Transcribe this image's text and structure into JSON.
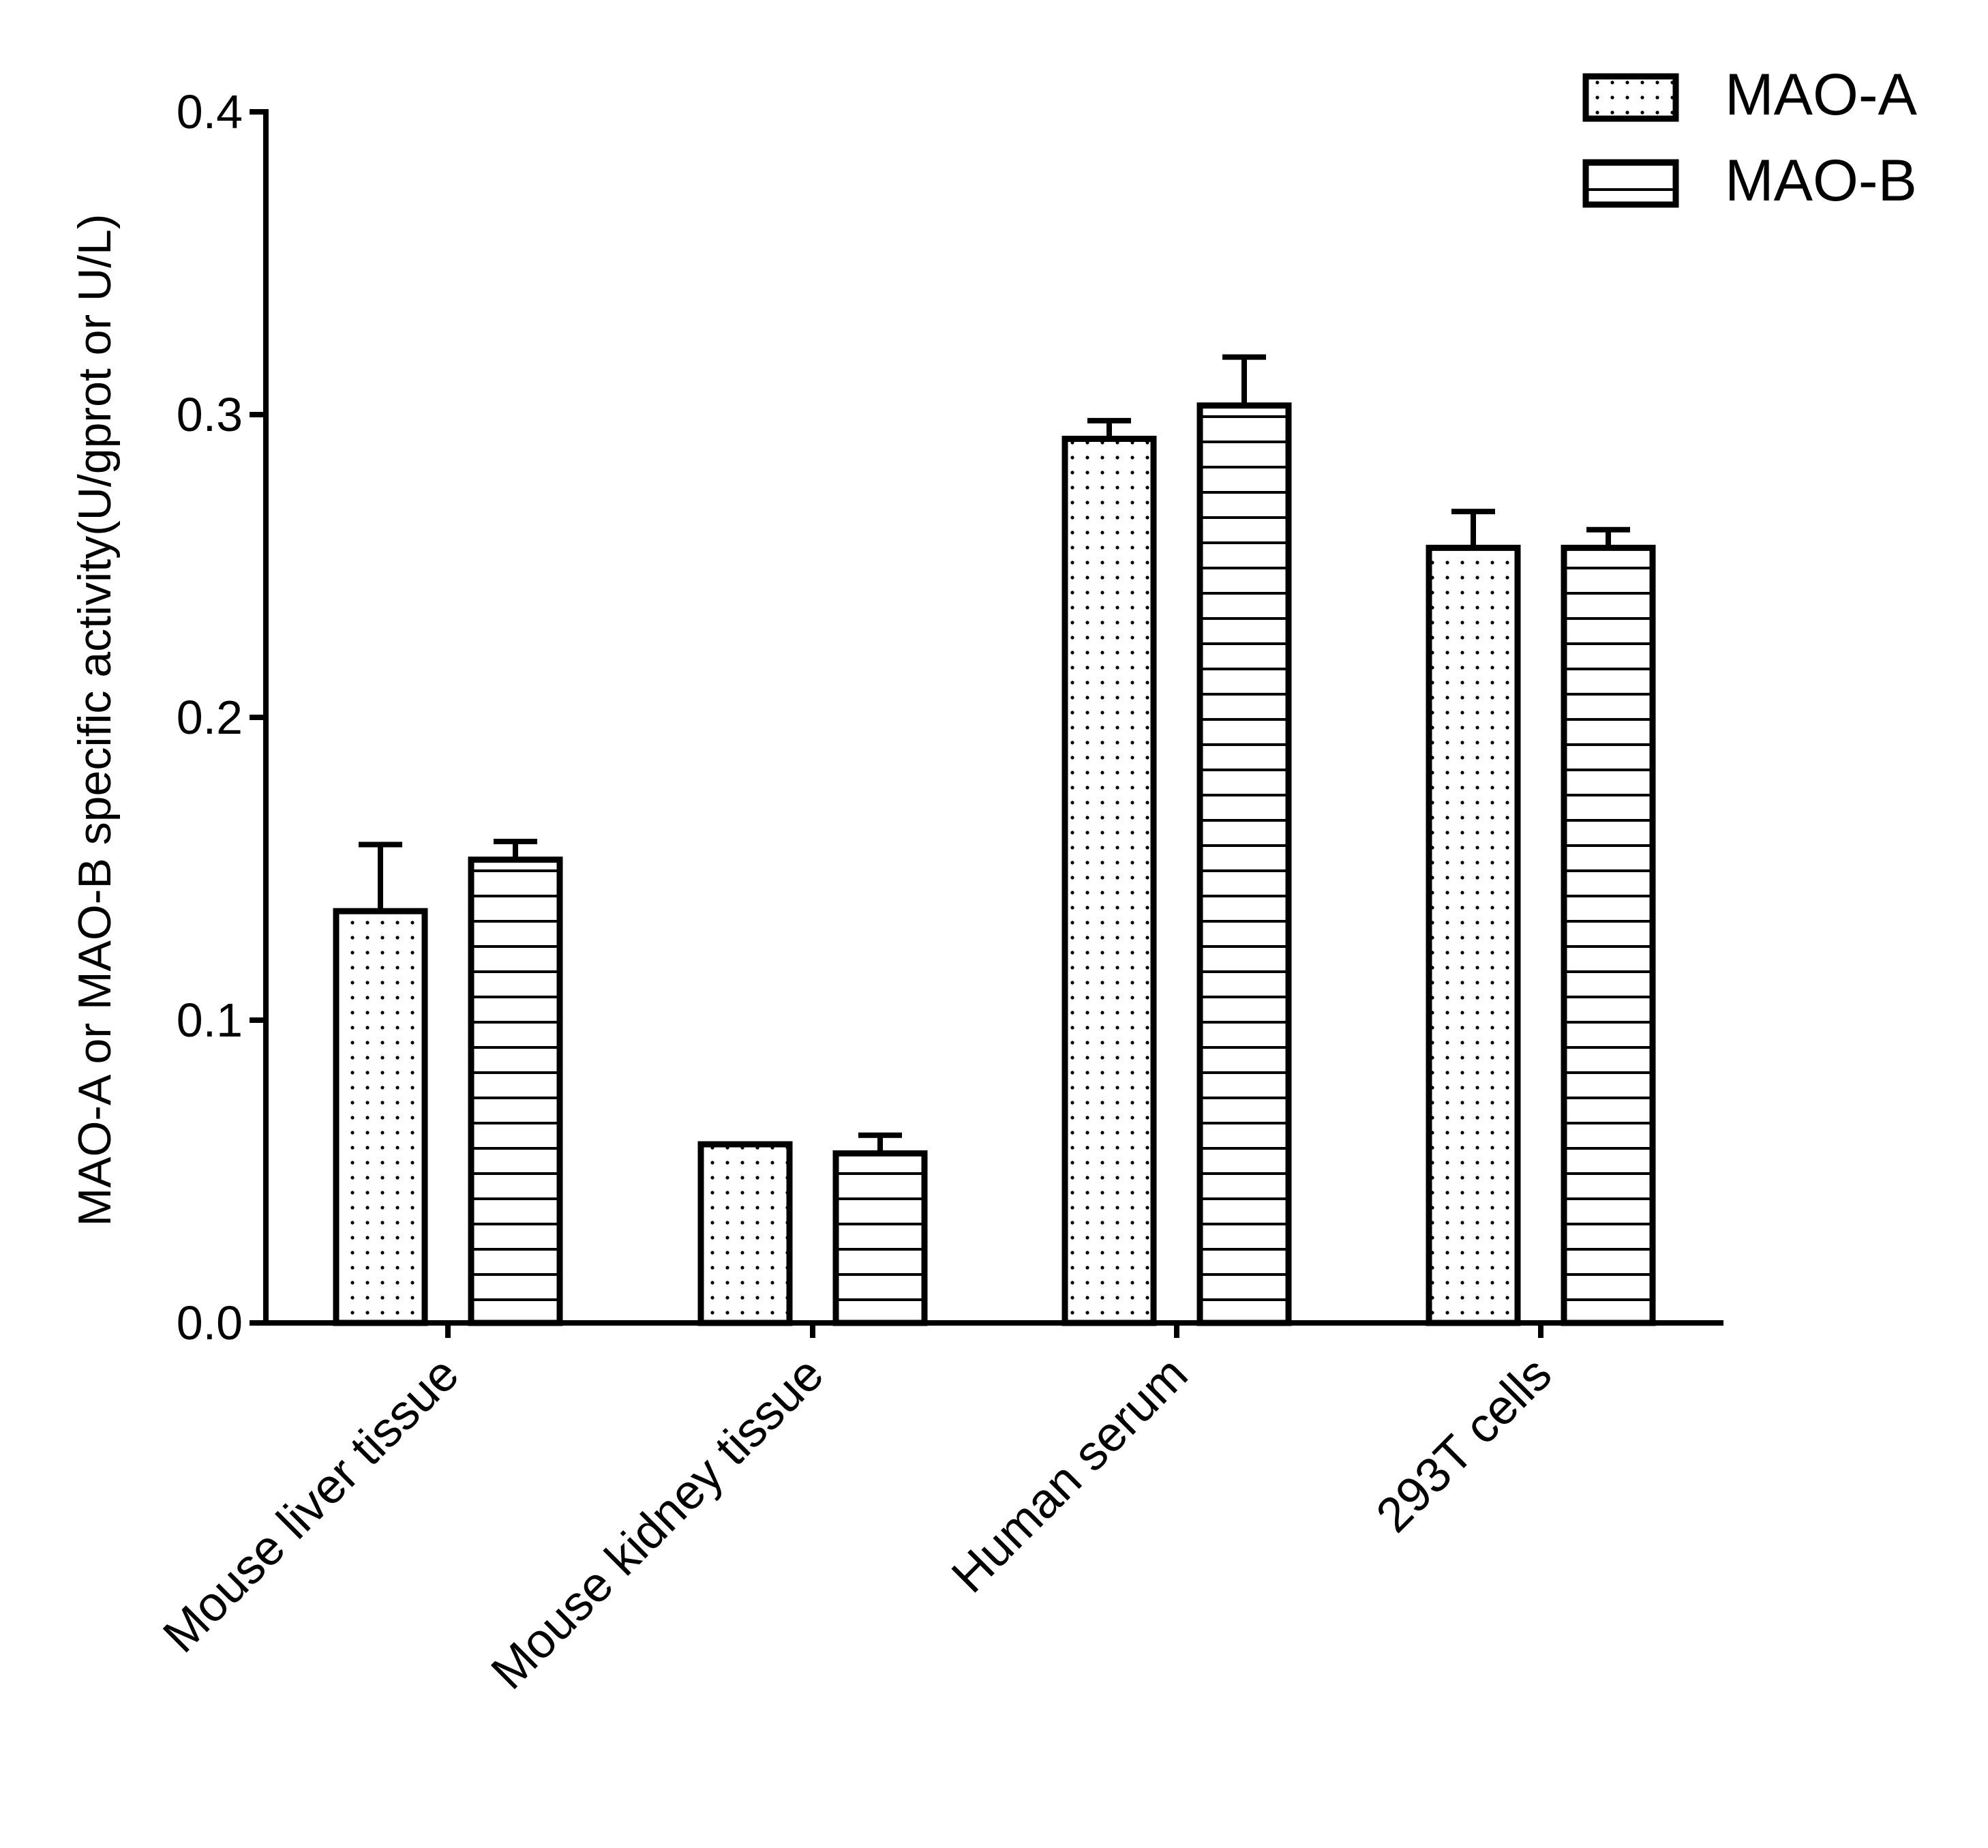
{
  "chart_data": {
    "type": "bar",
    "title": "",
    "ylabel": "MAO-A or MAO-B specific activity(U/gprot or U/L)",
    "xlabel": "",
    "ylim": [
      0,
      0.4
    ],
    "yticks": [
      0.0,
      0.1,
      0.2,
      0.3,
      0.4
    ],
    "ytick_labels": [
      "0.0",
      "0.1",
      "0.2",
      "0.3",
      "0.4"
    ],
    "grid": false,
    "legend_position": "top-right",
    "categories": [
      "Mouse liver tissue",
      "Mouse kidney tissue",
      "Human serum",
      "293T cells"
    ],
    "series": [
      {
        "name": "MAO-A",
        "pattern": "dots",
        "values": [
          0.136,
          0.059,
          0.292,
          0.256
        ],
        "errors": [
          0.022,
          0.0,
          0.006,
          0.012
        ]
      },
      {
        "name": "MAO-B",
        "pattern": "horizontal-lines",
        "values": [
          0.153,
          0.056,
          0.303,
          0.256
        ],
        "errors": [
          0.006,
          0.006,
          0.016,
          0.006
        ]
      }
    ]
  }
}
